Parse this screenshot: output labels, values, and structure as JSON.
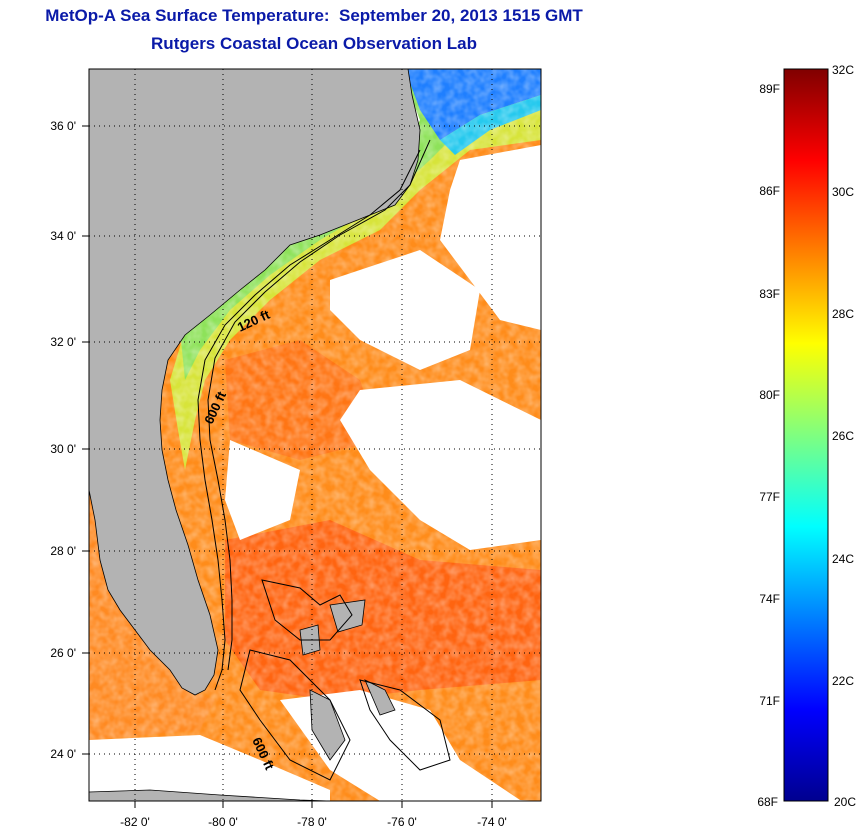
{
  "title": "MetOp-A Sea Surface Temperature:  September 20, 2013 1515 GMT",
  "subtitle": "Rutgers Coastal Ocean Observation Lab",
  "map": {
    "lat_labels": [
      "24 0'",
      "26 0'",
      "28 0'",
      "30 0'",
      "32 0'",
      "34 0'",
      "36 0'"
    ],
    "lon_labels": [
      "-82 0'",
      "-80 0'",
      "-78 0'",
      "-76 0'",
      "-74 0'"
    ],
    "isobath_labels": [
      "120 ft",
      "600 ft",
      "600 ft"
    ],
    "colors": {
      "land": "#b3b3b3",
      "cloud": "#ffffff",
      "border": "#000000"
    }
  },
  "colorbar": {
    "fahrenheit_labels": [
      "89F",
      "86F",
      "83F",
      "80F",
      "77F",
      "74F",
      "71F",
      "68F"
    ],
    "celsius_labels": [
      "32C",
      "30C",
      "28C",
      "26C",
      "24C",
      "22C",
      "20C"
    ],
    "range_c": [
      20,
      32
    ],
    "colormap": "jet"
  }
}
